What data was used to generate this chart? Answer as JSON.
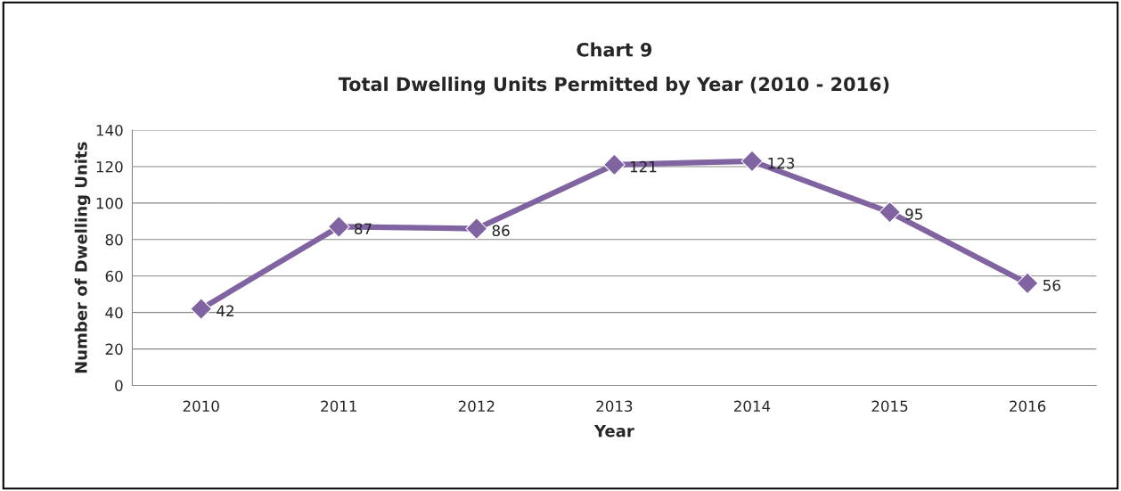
{
  "chart_data": {
    "type": "line",
    "title": "Chart 9",
    "subtitle": "Total Dwelling Units Permitted by Year (2010 - 2016)",
    "xlabel": "Year",
    "ylabel": "Number of Dwelling Units",
    "categories": [
      "2010",
      "2011",
      "2012",
      "2013",
      "2014",
      "2015",
      "2016"
    ],
    "series": [
      {
        "color": "#8064a2",
        "values": [
          42,
          87,
          86,
          121,
          123,
          95,
          56
        ]
      }
    ],
    "ylim": [
      0,
      140
    ],
    "yticks": [
      0,
      20,
      40,
      60,
      80,
      100,
      120,
      140
    ],
    "grid": "y",
    "marker": "diamond",
    "line_style": "solid",
    "data_labels": true,
    "legend": false
  }
}
